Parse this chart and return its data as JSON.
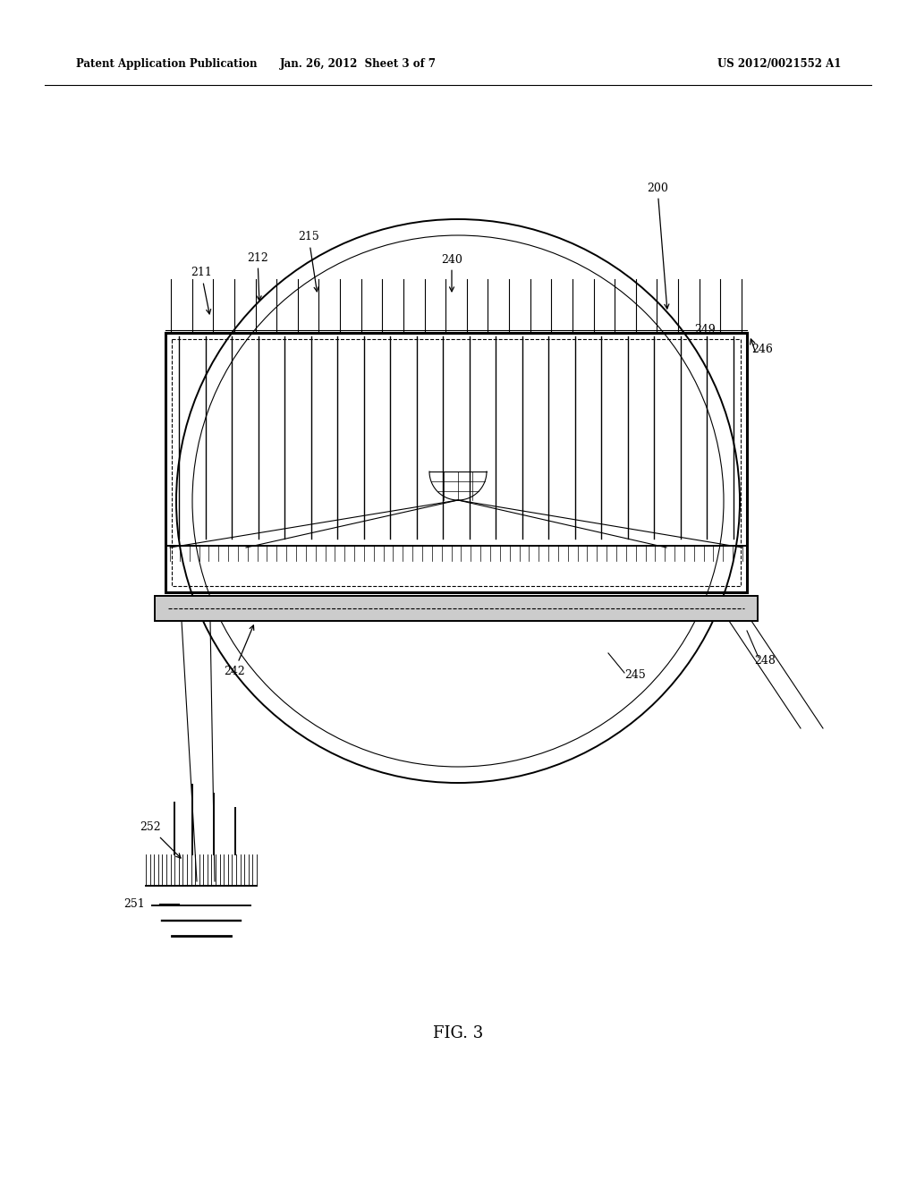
{
  "bg_color": "#ffffff",
  "line_color": "#000000",
  "header_left": "Patent Application Publication",
  "header_mid": "Jan. 26, 2012  Sheet 3 of 7",
  "header_right": "US 2012/0021552 A1",
  "fig_label": "FIG. 3"
}
